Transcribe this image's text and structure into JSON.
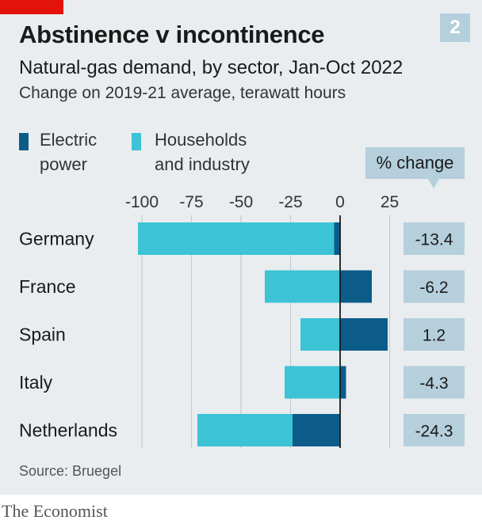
{
  "badge": "2",
  "title": "Abstinence v incontinence",
  "subtitle": "Natural-gas demand, by sector, Jan-Oct 2022",
  "subsubtitle": "Change on 2019-21 average, terawatt hours",
  "legend": [
    {
      "line1": "Electric",
      "line2": "power",
      "color": "#0c5c8a"
    },
    {
      "line1": "Households",
      "line2": "and industry",
      "color": "#3cc3d6"
    }
  ],
  "pct_header": "% change",
  "source": "Source: Bruegel",
  "footer": "The Economist",
  "colors": {
    "electric": "#0c5c8a",
    "households": "#3cc3d6",
    "pct_box": "#b5cfdc",
    "background": "#e9edf0",
    "accent": "#e3120b"
  },
  "chart_data": {
    "type": "bar",
    "orientation": "horizontal",
    "stacked": true,
    "categories": [
      "Germany",
      "France",
      "Spain",
      "Italy",
      "Netherlands"
    ],
    "series": [
      {
        "name": "Electric power",
        "values": [
          -3,
          16,
          24,
          3,
          -24
        ]
      },
      {
        "name": "Households and industry",
        "values": [
          -99,
          -38,
          -20,
          -28,
          -48
        ]
      }
    ],
    "pct_change": [
      "-13.4",
      "-6.2",
      "1.2",
      "-4.3",
      "-24.3"
    ],
    "xticks": [
      -100,
      -75,
      -50,
      -25,
      0,
      25
    ],
    "tick_labels": [
      "-100",
      "-75",
      "-50",
      "-25",
      "0",
      "25"
    ],
    "xlim": [
      -105,
      32
    ],
    "grid": true
  }
}
